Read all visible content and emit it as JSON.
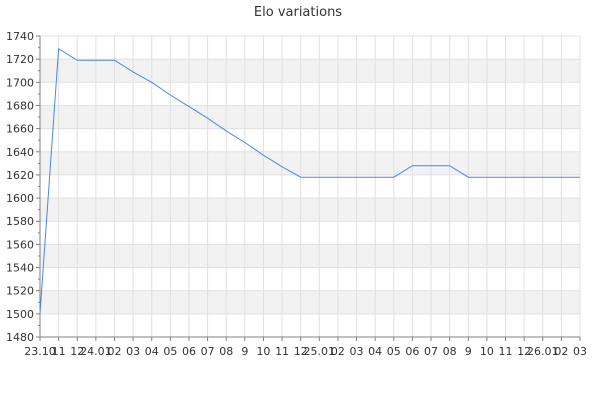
{
  "chart_data": {
    "type": "line",
    "title": "Elo variations",
    "xlabel": "",
    "ylabel": "",
    "ylim": [
      1480,
      1740
    ],
    "yticks": [
      1480,
      1500,
      1520,
      1540,
      1560,
      1580,
      1600,
      1620,
      1640,
      1660,
      1680,
      1700,
      1720,
      1740
    ],
    "categories": [
      "23.10",
      "11",
      "12",
      "24.01",
      "02",
      "03",
      "04",
      "05",
      "06",
      "07",
      "08",
      "9",
      "10",
      "11",
      "12",
      "25.01",
      "02",
      "03",
      "04",
      "05",
      "06",
      "07",
      "08",
      "9",
      "10",
      "11",
      "12",
      "26.01",
      "02",
      "03"
    ],
    "series": [
      {
        "values": [
          1500,
          1729,
          1719,
          1719,
          1719,
          1709,
          1700,
          1689,
          1679,
          1669,
          1658,
          1648,
          1637,
          1627,
          1618,
          1618,
          1618,
          1618,
          1618,
          1618,
          1628,
          1628,
          1628,
          1618,
          1618,
          1618,
          1618,
          1618,
          1618,
          1618
        ]
      }
    ],
    "grid": true,
    "alternating_bands": true,
    "legend": "none",
    "colors": {
      "line": "#4a86e8",
      "band": "#f2f2f2",
      "grid": "#e0e0e0",
      "axis": "#808080",
      "text": "#333333"
    }
  }
}
